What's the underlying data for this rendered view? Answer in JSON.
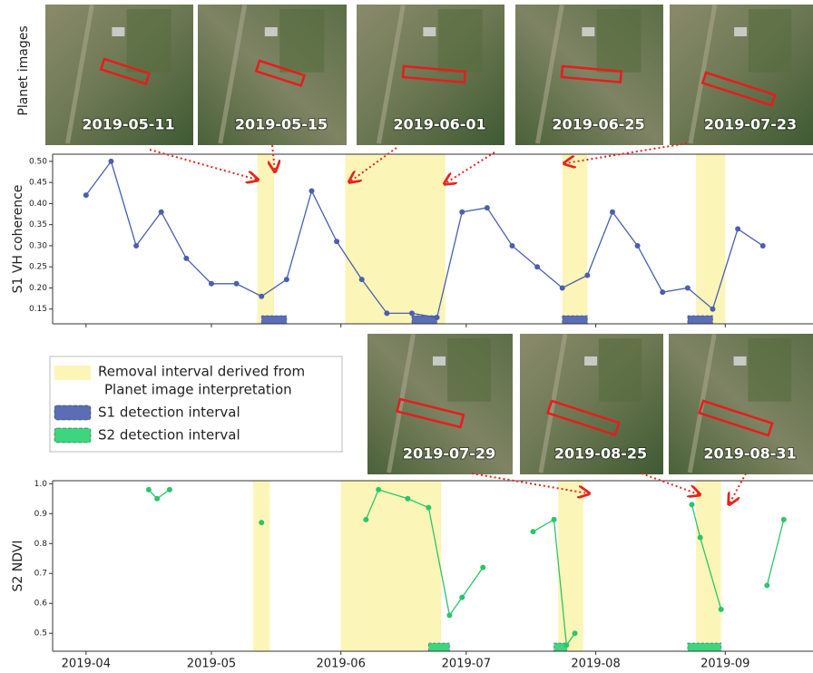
{
  "planet_label": "Planet images",
  "removal_color": "#fcf5b8",
  "images": [
    {
      "date": "2019-05-11"
    },
    {
      "date": "2019-05-15"
    },
    {
      "date": "2019-06-01"
    },
    {
      "date": "2019-06-25"
    },
    {
      "date": "2019-07-23"
    },
    {
      "date": "2019-07-29"
    },
    {
      "date": "2019-08-25"
    },
    {
      "date": "2019-08-31"
    }
  ],
  "legend": [
    {
      "label_lines": [
        "Removal interval derived from",
        "Planet image interpretation"
      ]
    },
    {
      "label": "S1 detection interval"
    },
    {
      "label": "S2 detection interval"
    }
  ],
  "chart_data": [
    {
      "type": "line",
      "y_label": "S1 VH coherence",
      "color": "#4a5fb0",
      "detection_color": "#5a6db5",
      "x": [
        0,
        6,
        12,
        18,
        24,
        30,
        36,
        42,
        48,
        54,
        60,
        66,
        72,
        78,
        84,
        90,
        96,
        102,
        108,
        114,
        120,
        126,
        132,
        138,
        144,
        150,
        156,
        162
      ],
      "values": [
        0.42,
        0.5,
        0.3,
        0.38,
        0.27,
        0.21,
        0.21,
        0.18,
        0.22,
        0.43,
        0.31,
        0.22,
        0.14,
        0.14,
        0.13,
        0.38,
        0.39,
        0.3,
        0.25,
        0.2,
        0.23,
        0.38,
        0.3,
        0.19,
        0.2,
        0.15,
        0.34,
        0.3
      ],
      "removal_intervals": [
        [
          41,
          45
        ],
        [
          62,
          86
        ],
        [
          114,
          120
        ],
        [
          146,
          153
        ]
      ],
      "detection_intervals": [
        [
          42,
          48
        ],
        [
          78,
          84
        ],
        [
          114,
          120
        ],
        [
          144,
          150
        ]
      ],
      "xlim": [
        -8,
        174
      ],
      "xticks": [
        0,
        30,
        61,
        91,
        122,
        153
      ],
      "ylim": [
        0.115,
        0.517
      ],
      "yticks": [
        0.15,
        {
          "value": 0.2,
          "label": "0.20"
        },
        0.25,
        {
          "value": 0.3,
          "label": "0.30"
        },
        0.35,
        {
          "value": 0.4,
          "label": "0.40"
        },
        0.45,
        {
          "value": 0.5,
          "label": "0.50"
        }
      ]
    },
    {
      "type": "line",
      "y_label": "S2 NDVI",
      "color": "#2cc56a",
      "detection_color": "#3dd67f",
      "x": [
        15,
        17,
        20,
        null,
        42,
        null,
        67,
        70,
        77,
        82,
        87,
        90,
        95,
        null,
        107,
        112,
        115,
        117,
        null,
        145,
        147,
        152,
        null,
        163,
        167
      ],
      "values": [
        0.98,
        0.95,
        0.98,
        null,
        0.87,
        null,
        0.88,
        0.98,
        0.95,
        0.92,
        0.56,
        0.62,
        0.72,
        null,
        0.84,
        0.88,
        0.46,
        0.5,
        null,
        0.93,
        0.82,
        0.58,
        null,
        0.66,
        0.88
      ],
      "removal_intervals": [
        [
          40,
          44
        ],
        [
          61,
          85
        ],
        [
          113,
          119
        ],
        [
          146,
          152
        ]
      ],
      "detection_intervals": [
        [
          82,
          87
        ],
        [
          112,
          115
        ],
        [
          144,
          152
        ]
      ],
      "xlim": [
        -8,
        174
      ],
      "xticks": [
        {
          "value": 0,
          "label": "2019-04"
        },
        {
          "value": 30,
          "label": "2019-05"
        },
        {
          "value": 61,
          "label": "2019-06"
        },
        {
          "value": 91,
          "label": "2019-07"
        },
        {
          "value": 122,
          "label": "2019-08"
        },
        {
          "value": 153,
          "label": "2019-09"
        }
      ],
      "ylim": [
        0.44,
        1.01
      ],
      "yticks": [
        0.5,
        0.6,
        0.7,
        0.8,
        0.9,
        {
          "value": 1.0,
          "label": "1.0"
        }
      ]
    }
  ]
}
